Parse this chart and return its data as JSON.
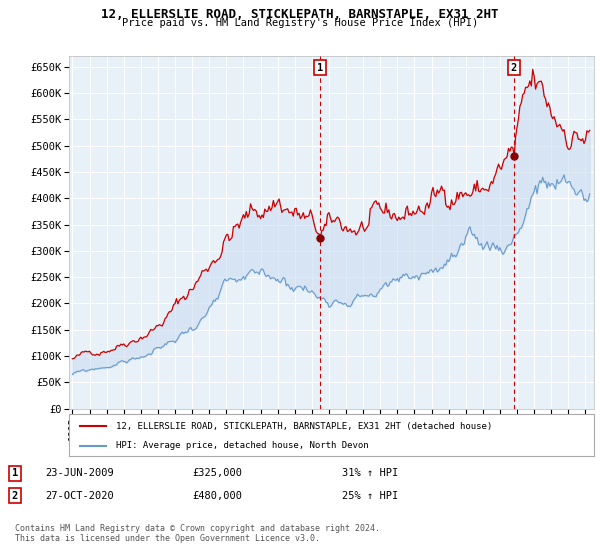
{
  "title": "12, ELLERSLIE ROAD, STICKLEPATH, BARNSTAPLE, EX31 2HT",
  "subtitle": "Price paid vs. HM Land Registry's House Price Index (HPI)",
  "ylim": [
    0,
    670000
  ],
  "yticks": [
    0,
    50000,
    100000,
    150000,
    200000,
    250000,
    300000,
    350000,
    400000,
    450000,
    500000,
    550000,
    600000,
    650000
  ],
  "ytick_labels": [
    "£0",
    "£50K",
    "£100K",
    "£150K",
    "£200K",
    "£250K",
    "£300K",
    "£350K",
    "£400K",
    "£450K",
    "£500K",
    "£550K",
    "£600K",
    "£650K"
  ],
  "xlim_start": 1994.8,
  "xlim_end": 2025.5,
  "sale1_date": 2009.48,
  "sale1_price": 325000,
  "sale1_label": "1",
  "sale2_date": 2020.82,
  "sale2_price": 480000,
  "sale2_label": "2",
  "legend_line1": "12, ELLERSLIE ROAD, STICKLEPATH, BARNSTAPLE, EX31 2HT (detached house)",
  "legend_line2": "HPI: Average price, detached house, North Devon",
  "annotation1_date": "23-JUN-2009",
  "annotation1_price": "£325,000",
  "annotation1_pct": "31% ↑ HPI",
  "annotation2_date": "27-OCT-2020",
  "annotation2_price": "£480,000",
  "annotation2_pct": "25% ↑ HPI",
  "footer": "Contains HM Land Registry data © Crown copyright and database right 2024.\nThis data is licensed under the Open Government Licence v3.0.",
  "line_red": "#cc0000",
  "line_blue": "#6699cc",
  "fill_color": "#ccddf0",
  "bg_plot": "#e8f0f8",
  "bg_fig": "#ffffff",
  "grid_color": "#ffffff"
}
